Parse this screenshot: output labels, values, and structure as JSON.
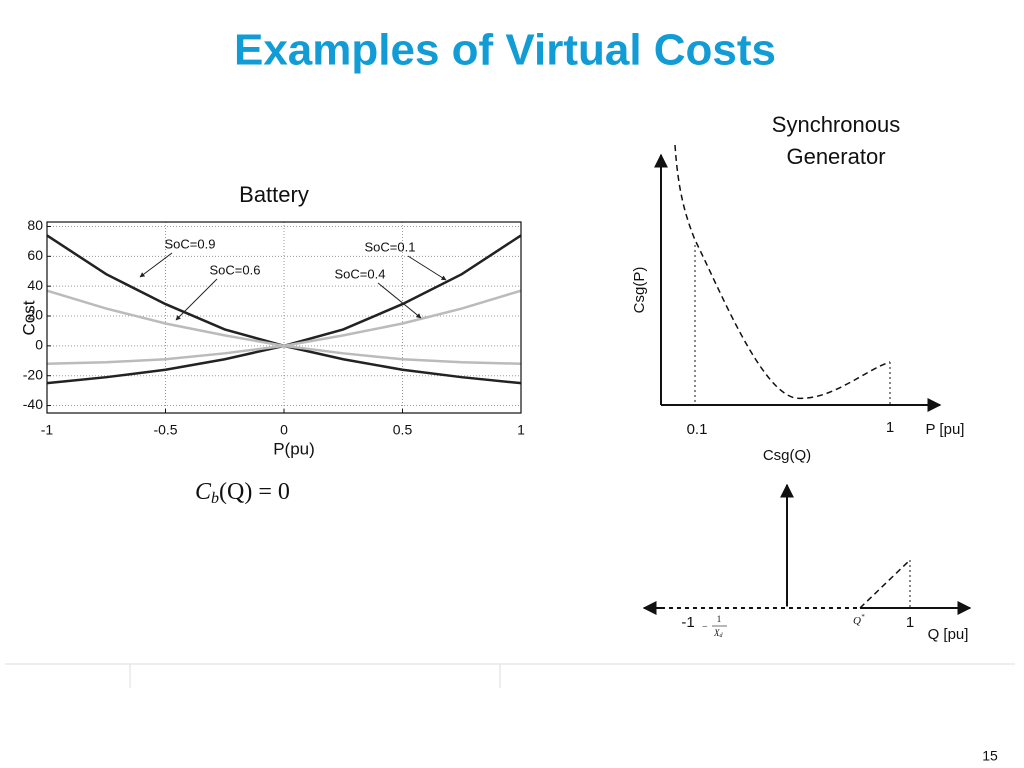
{
  "title": "Examples of Virtual Costs",
  "page_number": "15",
  "chart_data": {
    "type": "line",
    "title": "Battery",
    "x_label": "P(pu)",
    "y_label": "Cost",
    "x": [
      -1,
      -0.75,
      -0.5,
      -0.25,
      0,
      0.25,
      0.5,
      0.75,
      1
    ],
    "series": [
      {
        "name": "SoC=0.9",
        "color": "#222222",
        "values": [
          74,
          48,
          28,
          11,
          0,
          -9,
          -16,
          -21,
          -25
        ]
      },
      {
        "name": "SoC=0.6",
        "color": "#bbbbbb",
        "values": [
          37,
          25,
          15,
          7,
          0,
          -5,
          -9,
          -11,
          -12
        ]
      },
      {
        "name": "SoC=0.1",
        "color": "#222222",
        "values": [
          -25,
          -21,
          -16,
          -9,
          0,
          11,
          28,
          48,
          74
        ]
      },
      {
        "name": "SoC=0.4",
        "color": "#bbbbbb",
        "values": [
          -12,
          -11,
          -9,
          -5,
          0,
          7,
          15,
          25,
          37
        ]
      }
    ],
    "xlim": [
      -1,
      1
    ],
    "xticks": [
      -1,
      -0.5,
      0,
      0.5,
      1
    ],
    "ylim": [
      -45,
      83
    ],
    "yticks": [
      -40,
      -20,
      0,
      20,
      40,
      60,
      80
    ],
    "grid": true
  },
  "formula": {
    "symbol": "C",
    "subscript": "b",
    "rest": "(Q) = 0"
  },
  "diagram": {
    "title_lines": [
      "Synchronous",
      "Generator"
    ],
    "p_plot": {
      "y_label": "Csg(P)",
      "x_label": "P [pu]",
      "tick_low": "0.1",
      "tick_high": "1"
    },
    "q_plot": {
      "y_label": "Csg(Q)",
      "x_label": "Q [pu]",
      "tick_neg": "-1",
      "frac_sign": "−",
      "frac_num": "1",
      "frac_den": "X",
      "frac_den_sub": "d",
      "q_star": "Q",
      "q_star_sup": "*",
      "tick_one": "1"
    }
  }
}
